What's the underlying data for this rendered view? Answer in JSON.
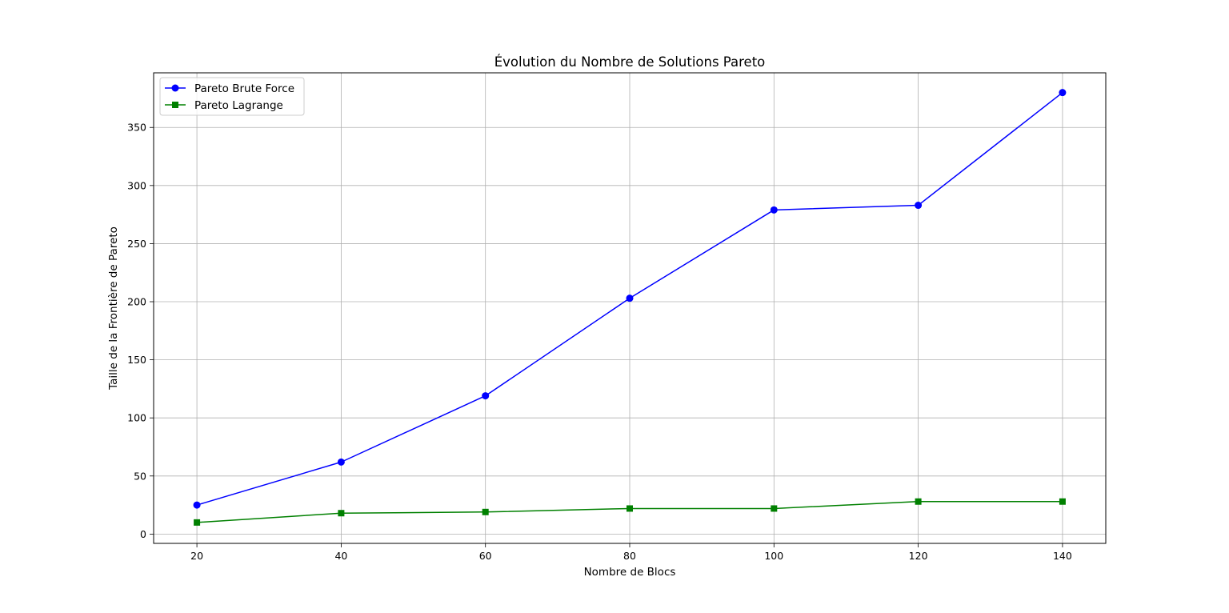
{
  "chart_data": {
    "type": "line",
    "title": "Évolution du Nombre de Solutions Pareto",
    "xlabel": "Nombre de Blocs",
    "ylabel": "Taille de la Frontière de Pareto",
    "x": [
      20,
      40,
      60,
      80,
      100,
      120,
      140
    ],
    "xlim": [
      14,
      146
    ],
    "ylim": [
      -8,
      397
    ],
    "xticks": [
      20,
      40,
      60,
      80,
      100,
      120,
      140
    ],
    "yticks": [
      0,
      50,
      100,
      150,
      200,
      250,
      300,
      350
    ],
    "grid": true,
    "legend_position": "upper-left",
    "series": [
      {
        "name": "Pareto Brute Force",
        "color": "#0000ff",
        "marker": "circle",
        "values": [
          25,
          62,
          119,
          203,
          279,
          283,
          380
        ]
      },
      {
        "name": "Pareto Lagrange",
        "color": "#008000",
        "marker": "square",
        "values": [
          10,
          18,
          19,
          22,
          22,
          28,
          28
        ]
      }
    ]
  }
}
